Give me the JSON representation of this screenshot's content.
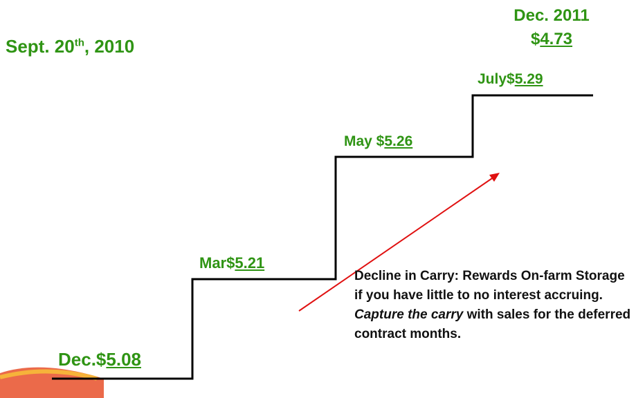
{
  "date": {
    "main": "Sept. 20",
    "sup": "th",
    "tail": ", 2010"
  },
  "target": {
    "label": "Dec. 2011",
    "currency": "$",
    "price": "4.73"
  },
  "steps": [
    {
      "label": "Dec.$",
      "price": "5.08"
    },
    {
      "label": "Mar$",
      "price": "5.21"
    },
    {
      "label": "May $",
      "price": "5.26"
    },
    {
      "label": "July$",
      "price": "5.29"
    }
  ],
  "note": {
    "lead": "Decline in Carry: Rewards On-farm Storage if you have little to no interest accruing.",
    "emphasis": "Capture the carry",
    "tail": " with sales for the deferred contract months."
  }
}
